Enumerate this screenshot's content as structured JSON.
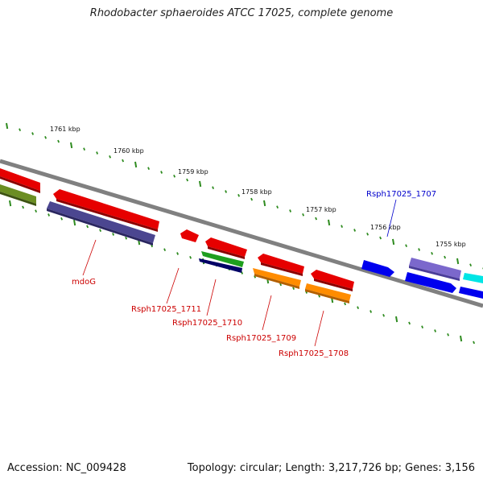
{
  "title": "Rhodobacter sphaeroides ATCC 17025, complete genome",
  "footer": {
    "accession": "Accession: NC_009428",
    "stats": "Topology: circular; Length: 3,217,726 bp; Genes: 3,156"
  },
  "colors": {
    "background": "#ffffff",
    "backbone": "#808080",
    "ticks": "#2e8b1f",
    "gene_label_red": "#cc0000",
    "gene_label_blue": "#0000cc"
  },
  "scale": {
    "unit": "kbp",
    "tick_labels": [
      "1761 kbp",
      "1760 kbp",
      "1759 kbp",
      "1758 kbp",
      "1757 kbp",
      "1756 kbp",
      "1755 kbp"
    ]
  },
  "genes": {
    "labels": [
      {
        "name": "mdoG",
        "color": "red"
      },
      {
        "name": "Rsph17025_1711",
        "color": "red"
      },
      {
        "name": "Rsph17025_1710",
        "color": "red"
      },
      {
        "name": "Rsph17025_1709",
        "color": "red"
      },
      {
        "name": "Rsph17025_1708",
        "color": "red"
      },
      {
        "name": "Rsph17025_1707",
        "color": "blue"
      }
    ],
    "feature_colors": [
      "#e60000",
      "#6b8e23",
      "#4b4690",
      "#1e9e1e",
      "#000066",
      "#ff8c00",
      "#0000ee",
      "#7b68cc",
      "#00e5e5"
    ]
  }
}
